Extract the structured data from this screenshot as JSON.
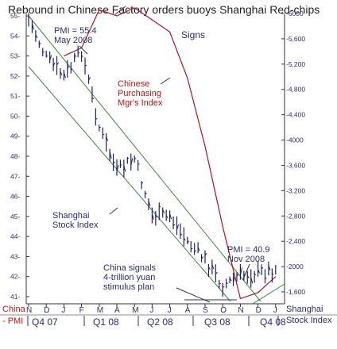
{
  "chart_data": {
    "type": "line",
    "title": "Rebound in Chinese Factory orders buoys Shanghai Red-chips",
    "left_axis": {
      "ticks": [
        "55",
        "54",
        "53",
        "52",
        "51",
        "50",
        "49",
        "48",
        "47",
        "46",
        "45",
        "44",
        "43",
        "42",
        "41"
      ],
      "range": [
        41,
        55
      ]
    },
    "right_axis": {
      "ticks": [
        "6000",
        "5,600",
        "5,200",
        "4,800",
        "4,400",
        "4000",
        "3,600",
        "3,200",
        "2,800",
        "2,400",
        "2000",
        "1,600"
      ],
      "range": [
        1600,
        6000
      ]
    },
    "x_months": [
      "N",
      "D",
      "J",
      "F",
      "M",
      "A",
      "M",
      "J",
      "J",
      "A",
      "S",
      "O",
      "N",
      "D",
      "J"
    ],
    "quarters": [
      "Q4 07",
      "Q1 08",
      "Q2 08",
      "Q3 08",
      "Q4 08"
    ],
    "bottom_left_label": [
      "China",
      "- PMI"
    ],
    "bottom_right_label": [
      "Shanghai",
      "Stock Index"
    ],
    "annotations": {
      "pmi_high": [
        "PMI = 55.4",
        "May 2008"
      ],
      "pmi_low": [
        "PMI = 40.9",
        "Nov 2008"
      ],
      "signs": "Signs",
      "pmi_label": [
        "Chinese",
        "Purchasing",
        "Mgr's Index"
      ],
      "shanghai_label": [
        "Shanghai",
        "Stock Index"
      ],
      "stimulus": [
        "China signals",
        "4-trillion yuan",
        "stimulus plan"
      ]
    },
    "series": [
      {
        "name": "Chinese Purchasing Mgr's Index",
        "color": "#b5121b",
        "axis": "left",
        "x": [
          "Jan 08",
          "Feb 08",
          "Mar 08",
          "Apr 08",
          "May 08",
          "Jun 08",
          "Jul 08",
          "Aug 08",
          "Sep 08",
          "Oct 08",
          "Nov 08",
          "Dec 08",
          "Jan 09"
        ],
        "values": [
          53.0,
          53.4,
          55.3,
          55.0,
          55.4,
          54.8,
          54.2,
          51.9,
          48.5,
          44.5,
          40.9,
          41.2,
          42.0
        ]
      },
      {
        "name": "Shanghai Stock Index",
        "color": "#1e1e6e",
        "axis": "right",
        "x": [
          "Nov 07",
          "Dec 07",
          "Jan 08",
          "Feb 08",
          "Mar 08",
          "Apr 08",
          "May 08",
          "Jun 08",
          "Jul 08",
          "Aug 08",
          "Sep 08",
          "Oct 08",
          "Nov 08",
          "Dec 08",
          "Jan 09"
        ],
        "values": [
          5900,
          5300,
          5000,
          5400,
          4200,
          3500,
          3700,
          2800,
          2800,
          2400,
          2100,
          1700,
          1850,
          1900,
          1950
        ]
      }
    ]
  }
}
